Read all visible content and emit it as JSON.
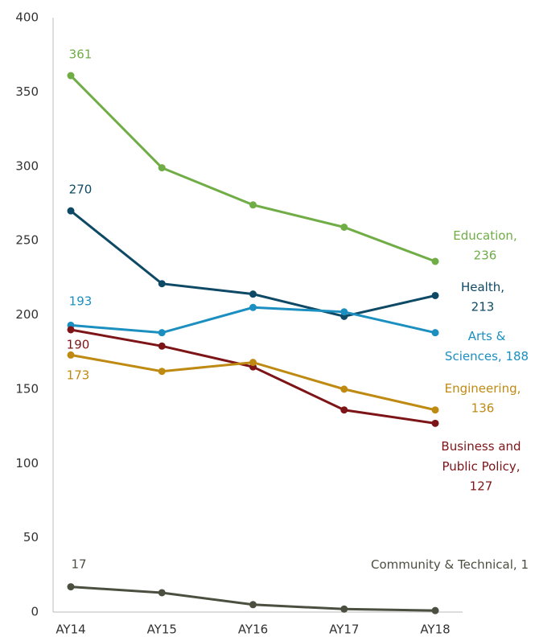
{
  "chart_data": {
    "type": "line",
    "categories": [
      "AY14",
      "AY15",
      "AY16",
      "AY17",
      "AY18"
    ],
    "ylim": [
      0,
      400
    ],
    "yticks": [
      0,
      50,
      100,
      150,
      200,
      250,
      300,
      350,
      400
    ],
    "grid": false,
    "series": [
      {
        "name": "Education",
        "color": "#70ad47",
        "values": [
          361,
          299,
          274,
          259,
          236
        ],
        "label_lines": [
          "Education,"
        ]
      },
      {
        "name": "Health",
        "color": "#0e4a66",
        "values": [
          270,
          221,
          214,
          199,
          213
        ],
        "label_lines": [
          "Health,"
        ]
      },
      {
        "name": "Arts & Sciences",
        "color": "#1b8fc0",
        "values": [
          193,
          188,
          205,
          202,
          188
        ],
        "label_lines": [
          "Arts &",
          "Sciences,"
        ]
      },
      {
        "name": "Business and Public Policy",
        "color": "#7d1518",
        "values": [
          190,
          179,
          165,
          136,
          127
        ],
        "label_lines": [
          "Business and",
          "Public Policy,"
        ]
      },
      {
        "name": "Engineering",
        "color": "#bf8a12",
        "values": [
          173,
          162,
          168,
          150,
          136
        ],
        "label_lines": [
          "Engineering,"
        ]
      },
      {
        "name": "Community & Technical",
        "color": "#4b4f40",
        "values": [
          17,
          13,
          5,
          2,
          1
        ],
        "label_lines": [
          "Community & Technical,"
        ]
      }
    ]
  }
}
